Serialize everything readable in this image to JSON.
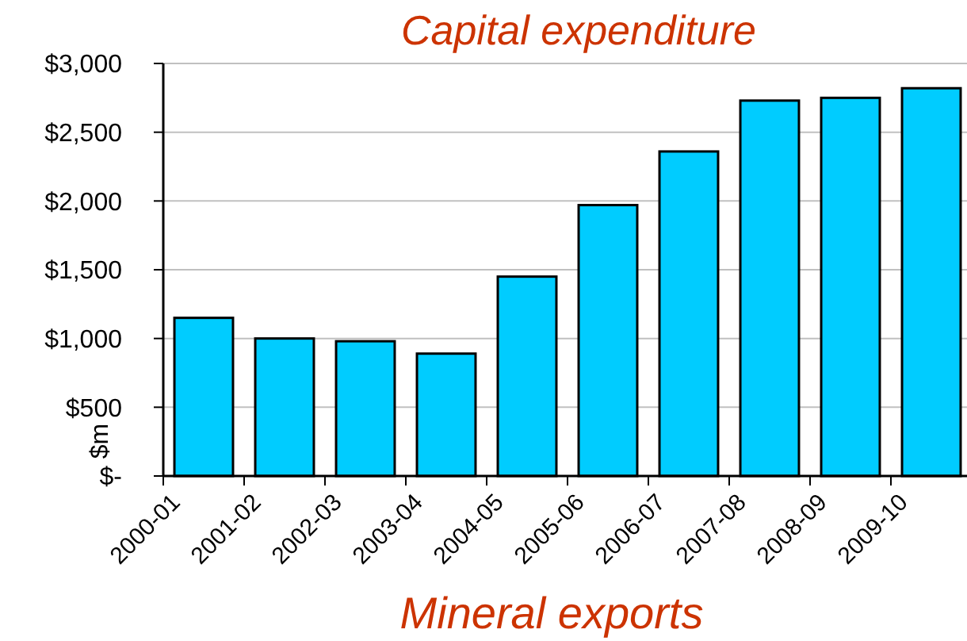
{
  "chart_data": {
    "type": "bar",
    "title": "Capital expenditure",
    "ylabel": "$m",
    "categories": [
      "2000-01",
      "2001-02",
      "2002-03",
      "2003-04",
      "2004-05",
      "2005-06",
      "2006-07",
      "2007-08",
      "2008-09",
      "2009-10"
    ],
    "values": [
      1150,
      1000,
      980,
      890,
      1450,
      1970,
      2360,
      2730,
      2750,
      2820
    ],
    "color": "#00ccff",
    "ylim": [
      0,
      3000
    ],
    "yticks": [
      {
        "value": 0,
        "label": "$-"
      },
      {
        "value": 500,
        "label": "$500"
      },
      {
        "value": 1000,
        "label": "$1,000"
      },
      {
        "value": 1500,
        "label": "$1,500"
      },
      {
        "value": 2000,
        "label": "$2,000"
      },
      {
        "value": 2500,
        "label": "$2,500"
      },
      {
        "value": 3000,
        "label": "$3,000"
      }
    ],
    "grid": "y",
    "annotations": [
      "Mineral exports"
    ]
  }
}
